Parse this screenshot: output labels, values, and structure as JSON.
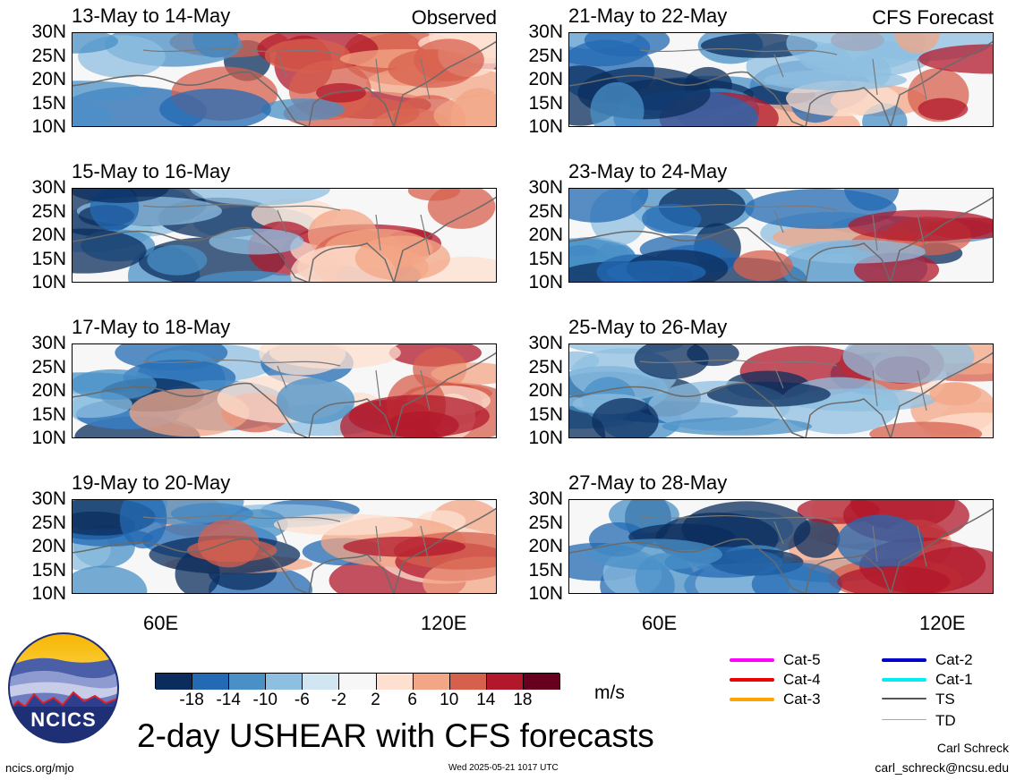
{
  "panels": [
    {
      "title": "13-May to 14-May",
      "tag": "Observed",
      "seed": 1
    },
    {
      "title": "21-May to 22-May",
      "tag": "CFS Forecast",
      "seed": 2
    },
    {
      "title": "15-May to 16-May",
      "tag": "",
      "seed": 3
    },
    {
      "title": "23-May to 24-May",
      "tag": "",
      "seed": 4
    },
    {
      "title": "17-May to 18-May",
      "tag": "",
      "seed": 5
    },
    {
      "title": "25-May to 26-May",
      "tag": "",
      "seed": 6
    },
    {
      "title": "19-May to 20-May",
      "tag": "",
      "seed": 7
    },
    {
      "title": "27-May to 28-May",
      "tag": "",
      "seed": 8
    }
  ],
  "lat_labels": [
    "30N",
    "25N",
    "20N",
    "15N",
    "10N"
  ],
  "lon_labels_left": [
    "60E",
    "120E"
  ],
  "lon_labels_right": [
    "60E",
    "120E"
  ],
  "colorbar": {
    "colors": [
      "#0b2d5e",
      "#2369b3",
      "#4a90c7",
      "#8fbfe0",
      "#d2e6f2",
      "#f7f7f7",
      "#fde0d0",
      "#f3a686",
      "#d7604d",
      "#b2182b",
      "#67001f"
    ],
    "ticks": [
      "-18",
      "-14",
      "-10",
      "-6",
      "-2",
      "2",
      "6",
      "10",
      "14",
      "18"
    ],
    "unit": "m/s"
  },
  "legend": [
    {
      "label": "Cat-5",
      "color": "#ff00ff"
    },
    {
      "label": "Cat-4",
      "color": "#ee0000"
    },
    {
      "label": "Cat-3",
      "color": "#ffa500"
    },
    {
      "label": "Cat-2",
      "color": "#0000cc"
    },
    {
      "label": "Cat-1",
      "color": "#00eeee"
    },
    {
      "label": "TS",
      "color": "#555555"
    },
    {
      "label": "TD",
      "color": "#aaaaaa"
    }
  ],
  "logo_text": "NCICS",
  "main_title": "2-day USHEAR with CFS forecasts",
  "author": "Carl Schreck",
  "email": "carl_schreck@ncsu.edu",
  "site": "ncics.org/mjo",
  "timestamp": "Wed 2025-05-21 1017 UTC"
}
